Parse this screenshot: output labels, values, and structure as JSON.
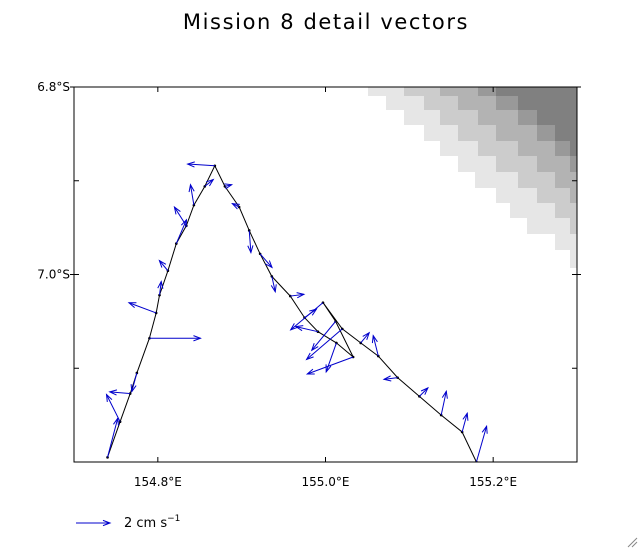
{
  "chart_data": {
    "type": "vector",
    "title": "Mission 8 detail vectors",
    "xlim": [
      154.7,
      155.3
    ],
    "ylim": [
      -7.2,
      -6.8
    ],
    "x_ticks": [
      154.8,
      155.0,
      155.2
    ],
    "x_tick_labels": [
      "154.8°E",
      "155.0°E",
      "155.2°E"
    ],
    "y_ticks": [
      -6.8,
      -7.0
    ],
    "y_tick_labels": [
      "6.8°S",
      "7.0°S"
    ],
    "minor_y_ticks": [
      -6.9,
      -7.1
    ],
    "legend": {
      "label": "2 cm s",
      "superscript": "−1",
      "reference_u": 2
    },
    "colors": {
      "vectors": "#0000cc",
      "track": "#000000",
      "shading": [
        "#e6e6e6",
        "#cccccc",
        "#b3b3b3",
        "#999999",
        "#808080"
      ]
    },
    "track": [
      [
        154.74,
        -7.195
      ],
      [
        154.755,
        -7.157
      ],
      [
        154.767,
        -7.127
      ],
      [
        154.775,
        -7.105
      ],
      [
        154.79,
        -7.068
      ],
      [
        154.798,
        -7.041
      ],
      [
        154.802,
        -7.022
      ],
      [
        154.812,
        -6.996
      ],
      [
        154.822,
        -6.967
      ],
      [
        154.834,
        -6.948
      ],
      [
        154.843,
        -6.926
      ],
      [
        154.856,
        -6.906
      ],
      [
        154.868,
        -6.884
      ],
      [
        154.88,
        -6.906
      ],
      [
        154.897,
        -6.928
      ],
      [
        154.909,
        -6.953
      ],
      [
        154.922,
        -6.978
      ],
      [
        154.936,
        -7.002
      ],
      [
        154.958,
        -7.023
      ],
      [
        154.975,
        -7.046
      ],
      [
        154.991,
        -7.061
      ],
      [
        155.013,
        -7.073
      ],
      [
        155.033,
        -7.088
      ],
      [
        155.012,
        -7.05
      ],
      [
        154.997,
        -7.03
      ],
      [
        155.02,
        -7.058
      ],
      [
        155.042,
        -7.073
      ],
      [
        155.063,
        -7.087
      ],
      [
        155.086,
        -7.11
      ],
      [
        155.112,
        -7.13
      ],
      [
        155.138,
        -7.15
      ],
      [
        155.163,
        -7.168
      ],
      [
        155.18,
        -7.2
      ]
    ],
    "vectors": [
      {
        "x": 154.74,
        "y": -7.195,
        "u": 0.6,
        "v": 2.3
      },
      {
        "x": 154.755,
        "y": -7.157,
        "u": -0.8,
        "v": 1.6
      },
      {
        "x": 154.767,
        "y": -7.127,
        "u": -1.2,
        "v": 0.1
      },
      {
        "x": 154.775,
        "y": -7.105,
        "u": -0.3,
        "v": -1.1
      },
      {
        "x": 154.79,
        "y": -7.068,
        "u": 3.0,
        "v": 0.0
      },
      {
        "x": 154.798,
        "y": -7.041,
        "u": -1.6,
        "v": 0.6
      },
      {
        "x": 154.802,
        "y": -7.022,
        "u": 0.1,
        "v": 0.8
      },
      {
        "x": 154.812,
        "y": -6.996,
        "u": -0.5,
        "v": 0.6
      },
      {
        "x": 154.822,
        "y": -6.967,
        "u": 0.6,
        "v": 1.4
      },
      {
        "x": 154.834,
        "y": -6.948,
        "u": -0.7,
        "v": 1.1
      },
      {
        "x": 154.843,
        "y": -6.926,
        "u": -0.2,
        "v": 1.2
      },
      {
        "x": 154.856,
        "y": -6.906,
        "u": 0.5,
        "v": 0.4
      },
      {
        "x": 154.868,
        "y": -6.884,
        "u": -1.6,
        "v": 0.1
      },
      {
        "x": 154.88,
        "y": -6.906,
        "u": 0.4,
        "v": 0.1
      },
      {
        "x": 154.897,
        "y": -6.928,
        "u": -0.4,
        "v": 0.2
      },
      {
        "x": 154.909,
        "y": -6.953,
        "u": 0.1,
        "v": -1.3
      },
      {
        "x": 154.922,
        "y": -6.978,
        "u": 0.7,
        "v": -0.8
      },
      {
        "x": 154.936,
        "y": -7.002,
        "u": 0.2,
        "v": -0.9
      },
      {
        "x": 154.958,
        "y": -7.023,
        "u": 0.8,
        "v": 0.1
      },
      {
        "x": 154.975,
        "y": -7.046,
        "u": 0.7,
        "v": 0.5
      },
      {
        "x": 154.991,
        "y": -7.061,
        "u": -1.3,
        "v": 0.3
      },
      {
        "x": 155.013,
        "y": -7.073,
        "u": -0.6,
        "v": -1.7
      },
      {
        "x": 155.033,
        "y": -7.088,
        "u": -2.7,
        "v": -1.0
      },
      {
        "x": 155.012,
        "y": -7.05,
        "u": -1.4,
        "v": -1.7
      },
      {
        "x": 154.997,
        "y": -7.03,
        "u": -1.9,
        "v": -1.6
      },
      {
        "x": 155.02,
        "y": -7.058,
        "u": -2.1,
        "v": -1.8
      },
      {
        "x": 155.042,
        "y": -7.073,
        "u": 0.5,
        "v": 0.6
      },
      {
        "x": 155.063,
        "y": -7.087,
        "u": -0.3,
        "v": 1.2
      },
      {
        "x": 155.086,
        "y": -7.11,
        "u": -0.8,
        "v": -0.1
      },
      {
        "x": 155.112,
        "y": -7.13,
        "u": 0.5,
        "v": 0.5
      },
      {
        "x": 155.138,
        "y": -7.15,
        "u": 0.3,
        "v": 1.4
      },
      {
        "x": 155.163,
        "y": -7.168,
        "u": 0.3,
        "v": 1.1
      },
      {
        "x": 155.18,
        "y": -7.2,
        "u": 0.6,
        "v": 2.1
      }
    ]
  }
}
